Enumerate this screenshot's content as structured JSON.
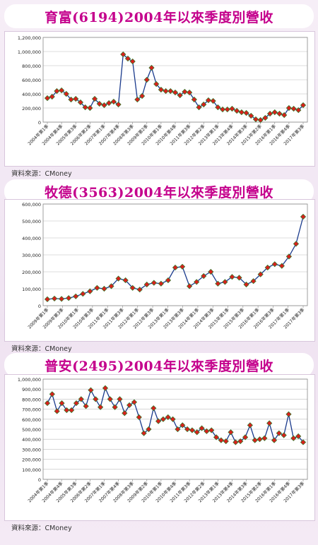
{
  "source_label": "資料來源：CMoney",
  "chart_data": [
    {
      "type": "line",
      "title": "育富(6194)2004年以來季度別營收",
      "ylim": [
        0,
        1200000
      ],
      "yticks": [
        0,
        200000,
        400000,
        600000,
        800000,
        1000000,
        1200000
      ],
      "ytick_labels": [
        "0",
        "200,000",
        "400,000",
        "600,000",
        "800,000",
        "1,000,000",
        "1,200,000"
      ],
      "xtick_labels": [
        "2004年第1季",
        "2004年第4季",
        "2005年第3季",
        "2006年第2季",
        "2007年第1季",
        "2007年第4季",
        "2008年第3季",
        "2009年第2季",
        "2010年第1季",
        "2010年第4季",
        "2011年第3季",
        "2012年第2季",
        "2013年第1季",
        "2013年第4季",
        "2014年第3季",
        "2015年第2季",
        "2016年第1季",
        "2016年第4季",
        "2017年第3季"
      ],
      "grid": true,
      "marker_color": "#d8201c",
      "line_color": "#1a3a8c",
      "values": [
        340000,
        360000,
        440000,
        450000,
        400000,
        320000,
        330000,
        280000,
        210000,
        200000,
        330000,
        260000,
        240000,
        270000,
        290000,
        250000,
        960000,
        900000,
        860000,
        320000,
        370000,
        600000,
        770000,
        540000,
        460000,
        440000,
        440000,
        420000,
        380000,
        430000,
        420000,
        320000,
        210000,
        250000,
        310000,
        300000,
        210000,
        180000,
        180000,
        190000,
        160000,
        140000,
        130000,
        90000,
        40000,
        30000,
        60000,
        120000,
        140000,
        120000,
        100000,
        200000,
        190000,
        170000,
        240000
      ]
    },
    {
      "type": "line",
      "title": "牧德(3563)2004年以來季度別營收",
      "ylim": [
        0,
        600000
      ],
      "yticks": [
        0,
        100000,
        200000,
        300000,
        400000,
        500000,
        600000
      ],
      "ytick_labels": [
        "0",
        "100,000",
        "200,000",
        "300,000",
        "400,000",
        "500,000",
        "600,000"
      ],
      "xtick_labels": [
        "2009年第1季",
        "2009年第3季",
        "2010年第1季",
        "2010年第3季",
        "2011年第1季",
        "2011年第3季",
        "2012年第1季",
        "2012年第3季",
        "2013年第1季",
        "2013年第3季",
        "2014年第1季",
        "2014年第3季",
        "2015年第1季",
        "2015年第3季",
        "2016年第1季",
        "2016年第3季",
        "2017年第1季",
        "2017年第3季"
      ],
      "grid": true,
      "marker_color": "#d8201c",
      "line_color": "#1a3a8c",
      "values": [
        38000,
        42000,
        40000,
        45000,
        55000,
        70000,
        85000,
        105000,
        100000,
        115000,
        160000,
        150000,
        105000,
        95000,
        125000,
        135000,
        130000,
        150000,
        225000,
        230000,
        115000,
        140000,
        175000,
        200000,
        130000,
        140000,
        170000,
        165000,
        125000,
        145000,
        185000,
        225000,
        245000,
        235000,
        290000,
        365000,
        525000
      ]
    },
    {
      "type": "line",
      "title": "普安(2495)2004年以來季度別營收",
      "ylim": [
        0,
        1000000
      ],
      "yticks": [
        0,
        100000,
        200000,
        300000,
        400000,
        500000,
        600000,
        700000,
        800000,
        900000,
        1000000
      ],
      "ytick_labels": [
        "0",
        "100,000",
        "200,000",
        "300,000",
        "400,000",
        "500,000",
        "600,000",
        "700,000",
        "800,000",
        "900,000",
        "1,000,000"
      ],
      "xtick_labels": [
        "2004年第1季",
        "2004年第4季",
        "2005年第3季",
        "2006年第2季",
        "2007年第1季",
        "2007年第4季",
        "2008年第3季",
        "2009年第2季",
        "2010年第1季",
        "2010年第4季",
        "2011年第3季",
        "2012年第2季",
        "2013年第1季",
        "2013年第4季",
        "2014年第3季",
        "2015年第2季",
        "2016年第1季",
        "2016年第4季",
        "2017年第3季"
      ],
      "grid": true,
      "marker_color": "#d8201c",
      "line_color": "#1a3a8c",
      "values": [
        760000,
        850000,
        680000,
        760000,
        690000,
        690000,
        760000,
        800000,
        730000,
        890000,
        800000,
        720000,
        910000,
        800000,
        720000,
        800000,
        660000,
        740000,
        770000,
        620000,
        460000,
        500000,
        710000,
        580000,
        600000,
        620000,
        600000,
        500000,
        540000,
        500000,
        490000,
        470000,
        510000,
        480000,
        490000,
        420000,
        390000,
        380000,
        470000,
        370000,
        380000,
        420000,
        540000,
        390000,
        400000,
        410000,
        560000,
        390000,
        460000,
        440000,
        650000,
        410000,
        430000,
        370000
      ]
    }
  ]
}
